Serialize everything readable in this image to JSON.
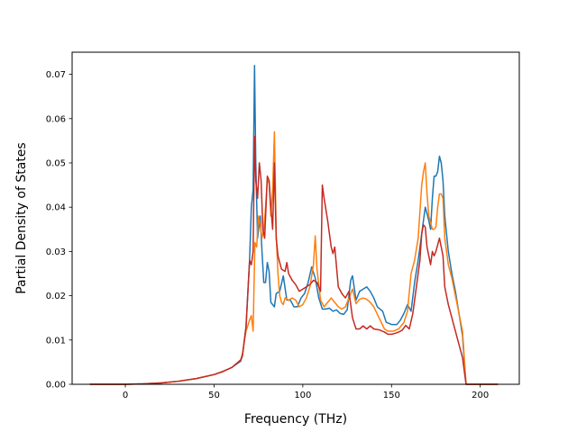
{
  "chart_data": {
    "type": "line",
    "title": "",
    "xlabel": "Frequency (THz)",
    "ylabel": "Partial Density of States",
    "xlim": [
      -30,
      222
    ],
    "ylim": [
      0,
      0.075
    ],
    "xticks": [
      0,
      50,
      100,
      150,
      200
    ],
    "yticks": [
      0.0,
      0.01,
      0.02,
      0.03,
      0.04,
      0.05,
      0.06,
      0.07
    ],
    "xtick_labels": [
      "0",
      "50",
      "100",
      "150",
      "200"
    ],
    "ytick_labels": [
      "0.00",
      "0.01",
      "0.02",
      "0.03",
      "0.04",
      "0.05",
      "0.06",
      "0.07"
    ],
    "grid": false,
    "legend": "none",
    "series": [
      {
        "color": "#1f77b4",
        "points": [
          [
            -20,
            0
          ],
          [
            0,
            0
          ],
          [
            10,
            0.0001
          ],
          [
            20,
            0.0003
          ],
          [
            30,
            0.0007
          ],
          [
            40,
            0.0013
          ],
          [
            50,
            0.0022
          ],
          [
            55,
            0.0029
          ],
          [
            60,
            0.0038
          ],
          [
            65,
            0.0052
          ],
          [
            66,
            0.0065
          ],
          [
            68,
            0.013
          ],
          [
            70,
            0.028
          ],
          [
            71,
            0.04
          ],
          [
            72,
            0.044
          ],
          [
            72.8,
            0.072
          ],
          [
            73.5,
            0.05
          ],
          [
            74.5,
            0.033
          ],
          [
            76,
            0.038
          ],
          [
            77,
            0.03
          ],
          [
            78,
            0.023
          ],
          [
            79,
            0.023
          ],
          [
            80,
            0.0275
          ],
          [
            81,
            0.0255
          ],
          [
            82,
            0.0185
          ],
          [
            84,
            0.0175
          ],
          [
            85,
            0.0205
          ],
          [
            87,
            0.021
          ],
          [
            89,
            0.0245
          ],
          [
            91,
            0.019
          ],
          [
            93,
            0.019
          ],
          [
            95,
            0.0175
          ],
          [
            97,
            0.0175
          ],
          [
            99,
            0.0195
          ],
          [
            101,
            0.0205
          ],
          [
            103,
            0.023
          ],
          [
            105,
            0.0265
          ],
          [
            107,
            0.024
          ],
          [
            109,
            0.0195
          ],
          [
            111,
            0.017
          ],
          [
            113,
            0.017
          ],
          [
            115,
            0.0172
          ],
          [
            117,
            0.0165
          ],
          [
            119,
            0.0168
          ],
          [
            121,
            0.016
          ],
          [
            123,
            0.0158
          ],
          [
            125,
            0.0168
          ],
          [
            127,
            0.0235
          ],
          [
            128,
            0.0245
          ],
          [
            130,
            0.019
          ],
          [
            132,
            0.021
          ],
          [
            134,
            0.0215
          ],
          [
            136,
            0.022
          ],
          [
            138,
            0.021
          ],
          [
            140,
            0.0195
          ],
          [
            142,
            0.0175
          ],
          [
            145,
            0.0165
          ],
          [
            147,
            0.014
          ],
          [
            150,
            0.0135
          ],
          [
            153,
            0.0135
          ],
          [
            155,
            0.0145
          ],
          [
            157,
            0.016
          ],
          [
            159,
            0.018
          ],
          [
            161,
            0.0165
          ],
          [
            163,
            0.023
          ],
          [
            165,
            0.028
          ],
          [
            167,
            0.034
          ],
          [
            169,
            0.04
          ],
          [
            171,
            0.037
          ],
          [
            172,
            0.035
          ],
          [
            173,
            0.042
          ],
          [
            174,
            0.047
          ],
          [
            175,
            0.047
          ],
          [
            176,
            0.048
          ],
          [
            177,
            0.0515
          ],
          [
            178,
            0.05
          ],
          [
            179,
            0.046
          ],
          [
            180,
            0.038
          ],
          [
            182,
            0.03
          ],
          [
            184,
            0.025
          ],
          [
            186,
            0.021
          ],
          [
            188,
            0.016
          ],
          [
            190,
            0.011
          ],
          [
            191,
            0.005
          ],
          [
            192,
            0
          ],
          [
            200,
            0
          ],
          [
            210,
            0
          ]
        ]
      },
      {
        "color": "#ff7f0e",
        "points": [
          [
            -20,
            0
          ],
          [
            0,
            0
          ],
          [
            10,
            0.0001
          ],
          [
            20,
            0.0003
          ],
          [
            30,
            0.0007
          ],
          [
            40,
            0.0013
          ],
          [
            50,
            0.0022
          ],
          [
            55,
            0.0029
          ],
          [
            60,
            0.0038
          ],
          [
            65,
            0.0055
          ],
          [
            66,
            0.007
          ],
          [
            68,
            0.012
          ],
          [
            70,
            0.0145
          ],
          [
            71,
            0.0155
          ],
          [
            72,
            0.012
          ],
          [
            73,
            0.032
          ],
          [
            74,
            0.031
          ],
          [
            75,
            0.038
          ],
          [
            76,
            0.036
          ],
          [
            77,
            0.033
          ],
          [
            78,
            0.035
          ],
          [
            79,
            0.04
          ],
          [
            80,
            0.046
          ],
          [
            81,
            0.0455
          ],
          [
            82,
            0.038
          ],
          [
            83,
            0.044
          ],
          [
            84,
            0.057
          ],
          [
            85,
            0.034
          ],
          [
            86,
            0.025
          ],
          [
            87,
            0.02
          ],
          [
            88,
            0.0185
          ],
          [
            89,
            0.018
          ],
          [
            90,
            0.0195
          ],
          [
            92,
            0.019
          ],
          [
            94,
            0.0195
          ],
          [
            96,
            0.019
          ],
          [
            98,
            0.0175
          ],
          [
            100,
            0.018
          ],
          [
            102,
            0.0195
          ],
          [
            104,
            0.022
          ],
          [
            106,
            0.027
          ],
          [
            107,
            0.0335
          ],
          [
            108,
            0.026
          ],
          [
            110,
            0.019
          ],
          [
            112,
            0.0175
          ],
          [
            114,
            0.0185
          ],
          [
            116,
            0.0195
          ],
          [
            118,
            0.0185
          ],
          [
            120,
            0.0175
          ],
          [
            122,
            0.017
          ],
          [
            124,
            0.0175
          ],
          [
            126,
            0.0195
          ],
          [
            128,
            0.0215
          ],
          [
            130,
            0.0182
          ],
          [
            132,
            0.0192
          ],
          [
            134,
            0.0195
          ],
          [
            136,
            0.0192
          ],
          [
            138,
            0.0185
          ],
          [
            140,
            0.0175
          ],
          [
            143,
            0.015
          ],
          [
            146,
            0.0125
          ],
          [
            148,
            0.012
          ],
          [
            151,
            0.012
          ],
          [
            154,
            0.0125
          ],
          [
            157,
            0.014
          ],
          [
            159,
            0.0165
          ],
          [
            161,
            0.025
          ],
          [
            163,
            0.028
          ],
          [
            165,
            0.033
          ],
          [
            167,
            0.045
          ],
          [
            168,
            0.048
          ],
          [
            169,
            0.05
          ],
          [
            170,
            0.043
          ],
          [
            171,
            0.038
          ],
          [
            172,
            0.0365
          ],
          [
            173,
            0.035
          ],
          [
            174,
            0.035
          ],
          [
            175,
            0.0355
          ],
          [
            176,
            0.04
          ],
          [
            177,
            0.043
          ],
          [
            178,
            0.043
          ],
          [
            179,
            0.042
          ],
          [
            180,
            0.033
          ],
          [
            182,
            0.027
          ],
          [
            184,
            0.024
          ],
          [
            186,
            0.02
          ],
          [
            188,
            0.016
          ],
          [
            190,
            0.012
          ],
          [
            191,
            0.006
          ],
          [
            192,
            0
          ],
          [
            200,
            0
          ],
          [
            210,
            0
          ]
        ]
      },
      {
        "color": "#c42a22",
        "points": [
          [
            -20,
            0
          ],
          [
            0,
            0
          ],
          [
            10,
            0.0001
          ],
          [
            20,
            0.0003
          ],
          [
            30,
            0.0007
          ],
          [
            40,
            0.0013
          ],
          [
            50,
            0.0022
          ],
          [
            55,
            0.0029
          ],
          [
            60,
            0.0038
          ],
          [
            65,
            0.0055
          ],
          [
            66,
            0.0065
          ],
          [
            68,
            0.013
          ],
          [
            70,
            0.028
          ],
          [
            71,
            0.027
          ],
          [
            72,
            0.03
          ],
          [
            72.8,
            0.056
          ],
          [
            73.5,
            0.046
          ],
          [
            74.5,
            0.042
          ],
          [
            75.5,
            0.05
          ],
          [
            76.5,
            0.046
          ],
          [
            77.5,
            0.035
          ],
          [
            78.5,
            0.033
          ],
          [
            80,
            0.047
          ],
          [
            81,
            0.046
          ],
          [
            82,
            0.04
          ],
          [
            83,
            0.035
          ],
          [
            84,
            0.05
          ],
          [
            85,
            0.033
          ],
          [
            86,
            0.029
          ],
          [
            88,
            0.026
          ],
          [
            90,
            0.0255
          ],
          [
            91,
            0.0275
          ],
          [
            92,
            0.025
          ],
          [
            94,
            0.0235
          ],
          [
            96,
            0.0225
          ],
          [
            98,
            0.021
          ],
          [
            100,
            0.0215
          ],
          [
            102,
            0.022
          ],
          [
            104,
            0.0225
          ],
          [
            106,
            0.0235
          ],
          [
            108,
            0.023
          ],
          [
            110,
            0.021
          ],
          [
            111,
            0.045
          ],
          [
            112,
            0.042
          ],
          [
            114,
            0.037
          ],
          [
            115,
            0.034
          ],
          [
            116,
            0.031
          ],
          [
            117,
            0.0295
          ],
          [
            118,
            0.031
          ],
          [
            120,
            0.022
          ],
          [
            122,
            0.0205
          ],
          [
            124,
            0.0195
          ],
          [
            126,
            0.021
          ],
          [
            128,
            0.015
          ],
          [
            130,
            0.0125
          ],
          [
            132,
            0.0125
          ],
          [
            134,
            0.0132
          ],
          [
            136,
            0.0125
          ],
          [
            138,
            0.0132
          ],
          [
            140,
            0.0125
          ],
          [
            143,
            0.0123
          ],
          [
            146,
            0.0118
          ],
          [
            148,
            0.0113
          ],
          [
            150,
            0.0113
          ],
          [
            152,
            0.0115
          ],
          [
            154,
            0.0118
          ],
          [
            156,
            0.0122
          ],
          [
            158,
            0.0133
          ],
          [
            160,
            0.0125
          ],
          [
            162,
            0.016
          ],
          [
            164,
            0.022
          ],
          [
            166,
            0.028
          ],
          [
            167,
            0.034
          ],
          [
            168,
            0.036
          ],
          [
            169,
            0.0355
          ],
          [
            170,
            0.031
          ],
          [
            171,
            0.029
          ],
          [
            172,
            0.027
          ],
          [
            173,
            0.03
          ],
          [
            174,
            0.029
          ],
          [
            175,
            0.03
          ],
          [
            176,
            0.0315
          ],
          [
            177,
            0.033
          ],
          [
            178,
            0.031
          ],
          [
            179,
            0.029
          ],
          [
            180,
            0.022
          ],
          [
            182,
            0.018
          ],
          [
            184,
            0.015
          ],
          [
            186,
            0.012
          ],
          [
            188,
            0.009
          ],
          [
            190,
            0.006
          ],
          [
            191,
            0.003
          ],
          [
            192,
            0
          ],
          [
            200,
            0
          ],
          [
            210,
            0
          ]
        ]
      }
    ]
  }
}
